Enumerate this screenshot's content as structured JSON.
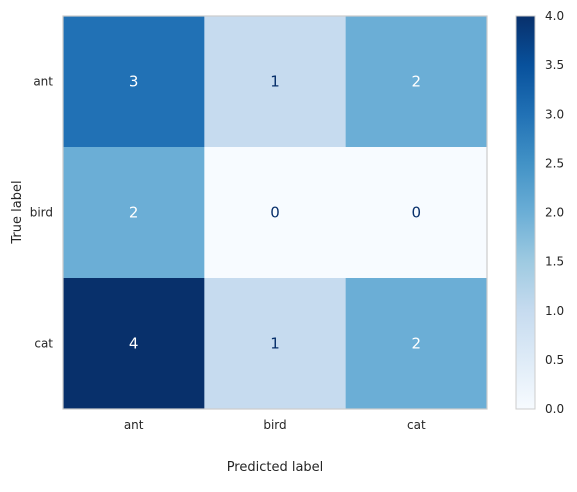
{
  "chart_data": {
    "type": "heatmap",
    "title": "",
    "xlabel": "Predicted label",
    "ylabel": "True label",
    "x_categories": [
      "ant",
      "bird",
      "cat"
    ],
    "y_categories": [
      "ant",
      "bird",
      "cat"
    ],
    "values": [
      [
        3,
        1,
        2
      ],
      [
        2,
        0,
        0
      ],
      [
        4,
        1,
        2
      ]
    ],
    "colormap": "Blues",
    "vmin": 0,
    "vmax": 4,
    "colorbar_ticks": [
      "0.0",
      "0.5",
      "1.0",
      "1.5",
      "2.0",
      "2.5",
      "3.0",
      "3.5",
      "4.0"
    ],
    "colorbar_tick_values": [
      0,
      0.5,
      1,
      1.5,
      2,
      2.5,
      3,
      3.5,
      4
    ],
    "grid": false,
    "colorbar_position": "right"
  }
}
